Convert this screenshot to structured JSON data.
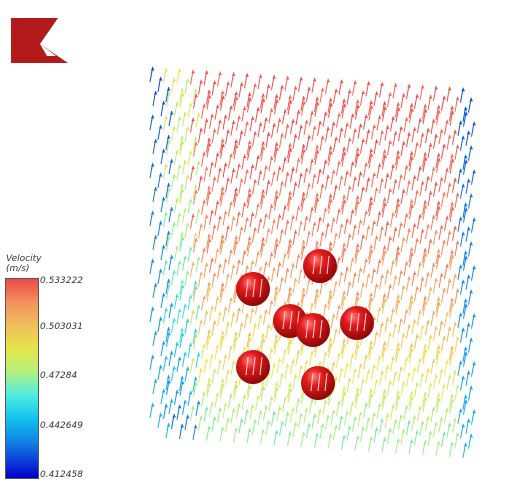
{
  "logo": {
    "name": "red-logo",
    "color": "#b31b1b"
  },
  "legend": {
    "title_line1": "Velocity",
    "title_line2": "(m/s)",
    "values": [
      "0.533222",
      "0.503031",
      "0.47284",
      "0.442649",
      "0.412458"
    ],
    "colors": [
      "#ec4a4a",
      "#f3925e",
      "#f0c05a",
      "#e5e54a",
      "#b8ef7a",
      "#52ece0",
      "#12c4ee",
      "#1280e5",
      "#0a2cd6",
      "#0000c8"
    ]
  },
  "spheres": {
    "count": 7,
    "color": "#d91616"
  }
}
